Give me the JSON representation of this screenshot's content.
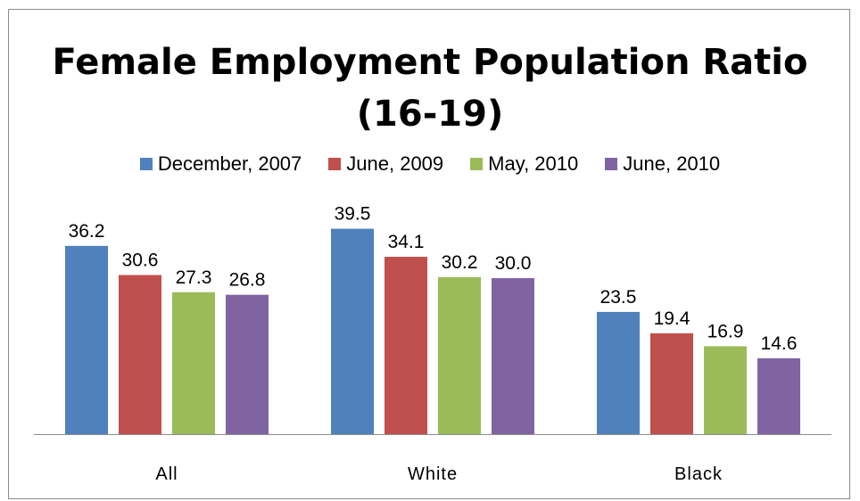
{
  "chart_data": {
    "type": "bar",
    "title": "Female Employment Population Ratio (16-19)",
    "categories": [
      "All",
      "White",
      "Black"
    ],
    "series": [
      {
        "name": "December, 2007",
        "color": "#4f81bd",
        "values": [
          36.2,
          39.5,
          23.5
        ]
      },
      {
        "name": "June, 2009",
        "color": "#c0504d",
        "values": [
          30.6,
          34.1,
          19.4
        ]
      },
      {
        "name": "May, 2010",
        "color": "#9bbb59",
        "values": [
          27.3,
          30.2,
          16.9
        ]
      },
      {
        "name": "June, 2010",
        "color": "#8064a2",
        "values": [
          26.8,
          30.0,
          14.6
        ]
      }
    ],
    "value_labels": [
      [
        "36.2",
        "39.5",
        "23.5"
      ],
      [
        "30.6",
        "34.1",
        "19.4"
      ],
      [
        "27.3",
        "30.2",
        "16.9"
      ],
      [
        "26.8",
        "30.0",
        "14.6"
      ]
    ],
    "xlabel": "",
    "ylabel": "",
    "ylim": [
      0,
      48
    ],
    "grid": false,
    "legend_position": "top"
  }
}
